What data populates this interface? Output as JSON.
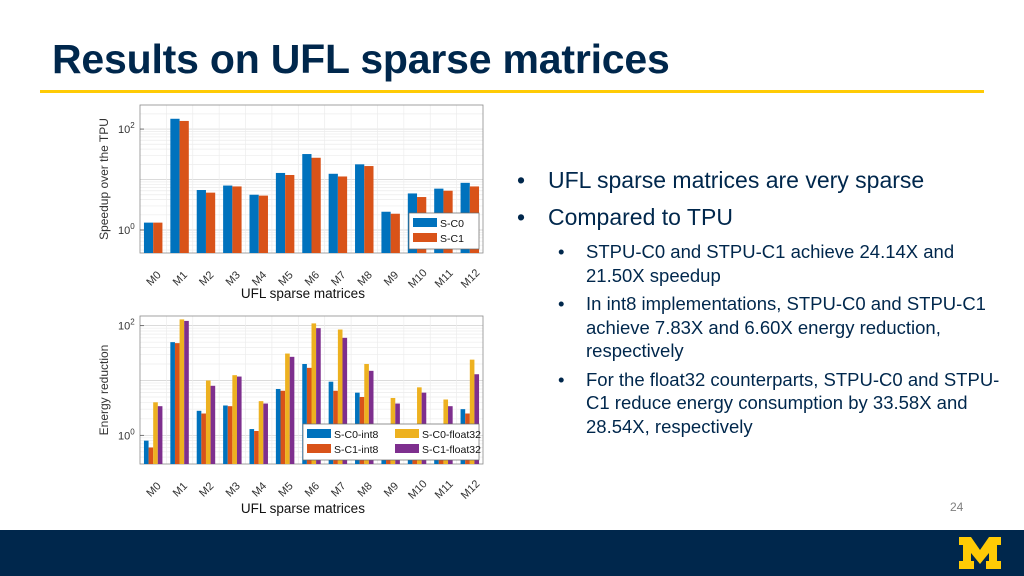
{
  "slide": {
    "title": "Results on UFL sparse matrices",
    "page_number": "24",
    "colors": {
      "navy": "#00274C",
      "gold": "#FFCB05"
    },
    "logo_icon": "block-m-logo"
  },
  "bullets": [
    {
      "level": 1,
      "text": "UFL sparse matrices are very sparse"
    },
    {
      "level": 1,
      "text": "Compared to TPU"
    },
    {
      "level": 2,
      "text": "STPU-C0 and STPU-C1 achieve 24.14X and 21.50X speedup"
    },
    {
      "level": 2,
      "text": "In int8 implementations, STPU-C0 and STPU-C1 achieve 7.83X and 6.60X energy reduction, respectively"
    },
    {
      "level": 2,
      "text": "For the float32 counterparts, STPU-C0 and STPU-C1 reduce energy consumption by 33.58X and 28.54X, respectively"
    }
  ],
  "chart_data": [
    {
      "type": "bar",
      "ylabel": "Speedup over the TPU",
      "xlabel": "UFL sparse matrices",
      "yscale": "log",
      "ylim": [
        0.35,
        300
      ],
      "yticks": [
        {
          "value": 1,
          "base": "10",
          "exp": "0"
        },
        {
          "value": 100,
          "base": "10",
          "exp": "2"
        }
      ],
      "grid": true,
      "legend_position": "bottom-right",
      "categories": [
        "M0",
        "M1",
        "M2",
        "M3",
        "M4",
        "M5",
        "M6",
        "M7",
        "M8",
        "M9",
        "M10",
        "M11",
        "M12"
      ],
      "series": [
        {
          "name": "S-C0",
          "color": "#0072BD",
          "values": [
            1.4,
            160,
            6.2,
            7.6,
            5.0,
            13.5,
            32,
            13,
            20,
            2.3,
            5.3,
            6.6,
            8.6
          ]
        },
        {
          "name": "S-C1",
          "color": "#D95319",
          "values": [
            1.4,
            145,
            5.5,
            7.3,
            4.8,
            12.3,
            27,
            11.5,
            18.5,
            2.1,
            4.5,
            6.0,
            7.3
          ]
        }
      ]
    },
    {
      "type": "bar",
      "ylabel": "Energy reduction",
      "xlabel": "UFL sparse matrices",
      "yscale": "log",
      "ylim": [
        0.3,
        150
      ],
      "yticks": [
        {
          "value": 1,
          "base": "10",
          "exp": "0"
        },
        {
          "value": 100,
          "base": "10",
          "exp": "2"
        }
      ],
      "grid": true,
      "legend_position": "bottom-right",
      "categories": [
        "M0",
        "M1",
        "M2",
        "M3",
        "M4",
        "M5",
        "M6",
        "M7",
        "M8",
        "M9",
        "M10",
        "M11",
        "M12"
      ],
      "series": [
        {
          "name": "S-C0-int8",
          "color": "#0072BD",
          "values": [
            0.8,
            50,
            2.8,
            3.5,
            1.3,
            7,
            20,
            9.5,
            6,
            0.8,
            1.3,
            1.4,
            3
          ]
        },
        {
          "name": "S-C1-int8",
          "color": "#D95319",
          "values": [
            0.6,
            48,
            2.5,
            3.4,
            1.2,
            6.5,
            17,
            6.5,
            5,
            0.7,
            1.1,
            1.2,
            2.5
          ]
        },
        {
          "name": "S-C0-float32",
          "color": "#EDB120",
          "values": [
            4,
            130,
            10,
            12.5,
            4.2,
            31,
            110,
            85,
            20,
            4.8,
            7.5,
            4.5,
            24
          ]
        },
        {
          "name": "S-C1-float32",
          "color": "#7E2F8E",
          "values": [
            3.4,
            122,
            8,
            11.8,
            3.8,
            27,
            90,
            60,
            15,
            3.8,
            6,
            3.4,
            13
          ]
        }
      ]
    }
  ]
}
